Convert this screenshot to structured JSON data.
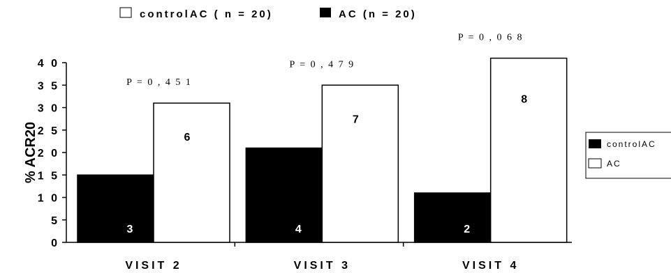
{
  "chart_data": {
    "type": "bar",
    "categories": [
      "VISIT 2",
      "VISIT 3",
      "VISIT 4"
    ],
    "series": [
      {
        "name": "controlAC",
        "values": [
          15,
          21,
          11
        ],
        "data_labels": [
          "3",
          "4",
          "2"
        ],
        "color": "#000000"
      },
      {
        "name": "AC",
        "values": [
          31,
          35,
          41
        ],
        "data_labels": [
          "6",
          "7",
          "8"
        ],
        "color": "#ffffff"
      }
    ],
    "p_values": [
      "P = 0 , 4 5 1",
      "P = 0 , 4 7 9",
      "P = 0 , 0 6 8"
    ],
    "top_legend": [
      "controlAC ( n = 20)",
      "AC (n = 20)"
    ],
    "title": "",
    "xlabel": "",
    "ylabel": "% ACR20",
    "ylim": [
      0,
      40
    ],
    "yticks": [
      "0",
      "5",
      "1 0",
      "1 5",
      "2 0",
      "2 5",
      "3 0",
      "3 5",
      "4 0"
    ],
    "grid": false,
    "legend_position": "right"
  }
}
